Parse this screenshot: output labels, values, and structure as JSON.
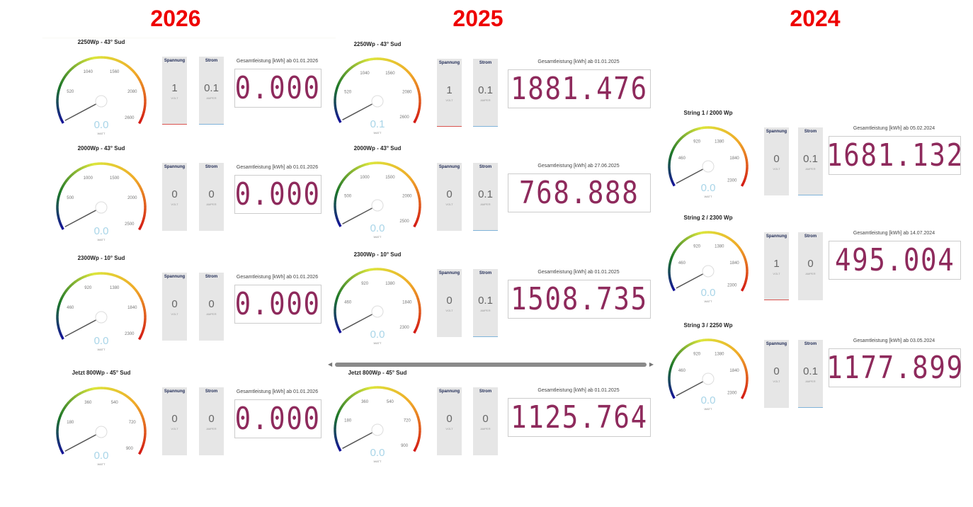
{
  "years": [
    "2026",
    "2025",
    "2024"
  ],
  "columns": [
    {
      "year": "2026",
      "cards": [
        {
          "title": "2250Wp - 43° Sud",
          "ticks": [
            "520",
            "1040",
            "1560",
            "2080",
            "2600"
          ],
          "value": "0.0",
          "unit": "WATT",
          "spannung": {
            "label": "Spannung",
            "value": "1",
            "unit": "VOLT"
          },
          "strom": {
            "label": "Strom",
            "value": "0.1",
            "unit": "AMPER"
          },
          "counter_label": "Gesamtleistung [kWh] ab 01.01.2026",
          "counter_value": "0.000"
        },
        {
          "title": "2000Wp - 43° Sud",
          "ticks": [
            "500",
            "1000",
            "1500",
            "2000",
            "2500"
          ],
          "value": "0.0",
          "unit": "WATT",
          "spannung": {
            "label": "Spannung",
            "value": "0",
            "unit": "VOLT"
          },
          "strom": {
            "label": "Strom",
            "value": "0",
            "unit": "AMPER"
          },
          "counter_label": "Gesamtleistung [kWh] ab 01.01.2026",
          "counter_value": "0.000"
        },
        {
          "title": "2300Wp - 10° Sud",
          "ticks": [
            "460",
            "920",
            "1380",
            "1840",
            "2300"
          ],
          "value": "0.0",
          "unit": "WATT",
          "spannung": {
            "label": "Spannung",
            "value": "0",
            "unit": "VOLT"
          },
          "strom": {
            "label": "Strom",
            "value": "0",
            "unit": "AMPER"
          },
          "counter_label": "Gesamtleistung [kWh] ab 01.01.2026",
          "counter_value": "0.000"
        },
        {
          "title": "Jetzt 800Wp - 45° Sud",
          "ticks": [
            "180",
            "360",
            "540",
            "720",
            "900"
          ],
          "value": "0.0",
          "unit": "WATT",
          "spannung": {
            "label": "Spannung",
            "value": "0",
            "unit": "VOLT"
          },
          "strom": {
            "label": "Strom",
            "value": "0",
            "unit": "AMPER"
          },
          "counter_label": "Gesamtleistung [kWh] ab 01.01.2026",
          "counter_value": "0.000"
        }
      ]
    },
    {
      "year": "2025",
      "cards": [
        {
          "title": "2250Wp - 43° Sud",
          "ticks": [
            "520",
            "1040",
            "1560",
            "2080",
            "2600"
          ],
          "value": "0.1",
          "unit": "WATT",
          "spannung": {
            "label": "Spannung",
            "value": "1",
            "unit": "VOLT"
          },
          "strom": {
            "label": "Strom",
            "value": "0.1",
            "unit": "AMPER"
          },
          "counter_label": "Gesamtleistung [kWh] ab 01.01.2025",
          "counter_value": "1881.476"
        },
        {
          "title": "2000Wp - 43° Sud",
          "ticks": [
            "500",
            "1000",
            "1500",
            "2000",
            "2500"
          ],
          "value": "0.0",
          "unit": "WATT",
          "spannung": {
            "label": "Spannung",
            "value": "0",
            "unit": "VOLT"
          },
          "strom": {
            "label": "Strom",
            "value": "0.1",
            "unit": "AMPER"
          },
          "counter_label": "Gesamtleistung [kWh] ab 27.06.2025",
          "counter_value": "768.888"
        },
        {
          "title": "2300Wp - 10° Sud",
          "ticks": [
            "460",
            "920",
            "1380",
            "1840",
            "2300"
          ],
          "value": "0.0",
          "unit": "WATT",
          "spannung": {
            "label": "Spannung",
            "value": "0",
            "unit": "VOLT"
          },
          "strom": {
            "label": "Strom",
            "value": "0.1",
            "unit": "AMPER"
          },
          "counter_label": "Gesamtleistung [kWh] ab 01.01.2025",
          "counter_value": "1508.735"
        },
        {
          "title": "Jetzt 800Wp - 45° Sud",
          "ticks": [
            "180",
            "360",
            "540",
            "720",
            "900"
          ],
          "value": "0.0",
          "unit": "WATT",
          "spannung": {
            "label": "Spannung",
            "value": "0",
            "unit": "VOLT"
          },
          "strom": {
            "label": "Strom",
            "value": "0",
            "unit": "AMPER"
          },
          "counter_label": "Gesamtleistung [kWh] ab 01.01.2025",
          "counter_value": "1125.764"
        }
      ]
    },
    {
      "year": "2024",
      "cards": [
        {
          "title": "String 1 / 2000 Wp",
          "ticks": [
            "460",
            "920",
            "1380",
            "1840",
            "2300"
          ],
          "value": "0.0",
          "unit": "WATT",
          "spannung": {
            "label": "Spannung",
            "value": "0",
            "unit": "VOLT"
          },
          "strom": {
            "label": "Strom",
            "value": "0.1",
            "unit": "AMPER"
          },
          "counter_label": "Gesamtleistung [kWh] ab 05.02.2024",
          "counter_value": "1681.132"
        },
        {
          "title": "String 2 / 2300 Wp",
          "ticks": [
            "460",
            "920",
            "1380",
            "1840",
            "2300"
          ],
          "value": "0.0",
          "unit": "WATT",
          "spannung": {
            "label": "Spannung",
            "value": "1",
            "unit": "VOLT"
          },
          "strom": {
            "label": "Strom",
            "value": "0",
            "unit": "AMPER"
          },
          "counter_label": "Gesamtleistung [kWh] ab 14.07.2024",
          "counter_value": "495.004"
        },
        {
          "title": "String 3 / 2250 Wp",
          "ticks": [
            "460",
            "920",
            "1380",
            "1840",
            "2300"
          ],
          "value": "0.0",
          "unit": "WATT",
          "spannung": {
            "label": "Spannung",
            "value": "0",
            "unit": "VOLT"
          },
          "strom": {
            "label": "Strom",
            "value": "0.1",
            "unit": "AMPER"
          },
          "counter_label": "Gesamtleistung [kWh] ab 03.05.2024",
          "counter_value": "1177.899"
        }
      ]
    }
  ],
  "colors": {
    "year": "#ee0000",
    "counter": "#8e2a5c",
    "spannung_bar": "#d9534f",
    "strom_bar": "#7fb3d9",
    "gauge_value": "#a9d5e8"
  }
}
